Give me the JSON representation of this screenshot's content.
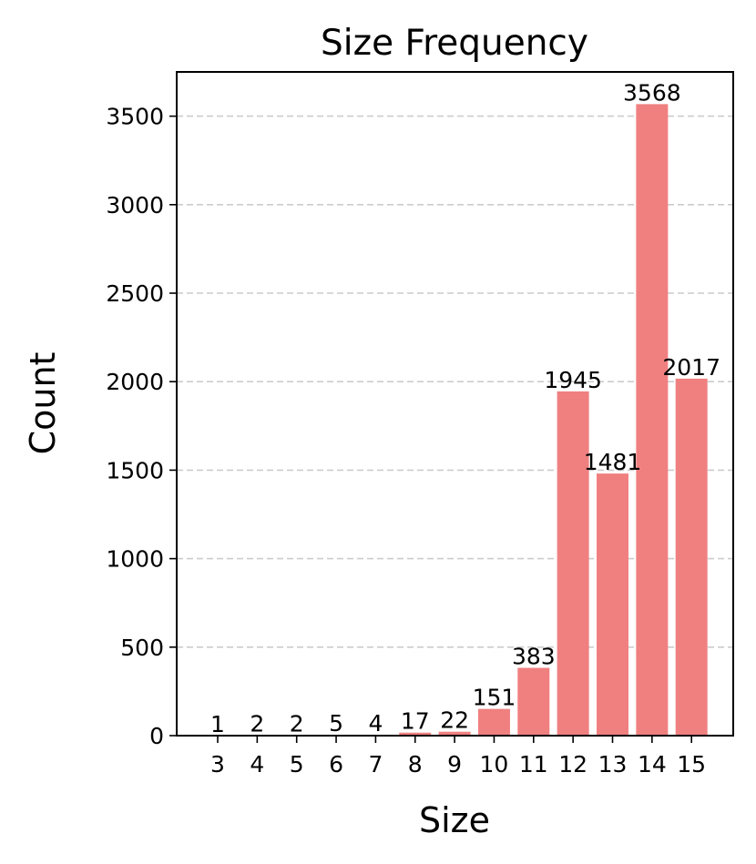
{
  "chart_data": {
    "type": "bar",
    "title": "Size Frequency",
    "xlabel": "Size",
    "ylabel": "Count",
    "categories": [
      "3",
      "4",
      "5",
      "6",
      "7",
      "8",
      "9",
      "10",
      "11",
      "12",
      "13",
      "14",
      "15"
    ],
    "values": [
      1,
      2,
      2,
      5,
      4,
      17,
      22,
      151,
      383,
      1945,
      1481,
      3568,
      2017
    ],
    "data_labels": [
      "1",
      "2",
      "2",
      "5",
      "4",
      "17",
      "22",
      "151",
      "383",
      "1945",
      "1481",
      "3568",
      "2017"
    ],
    "yticks": [
      0,
      500,
      1000,
      1500,
      2000,
      2500,
      3000,
      3500
    ],
    "ylim": [
      0,
      3750
    ],
    "grid": "y, dashed",
    "bar_color": "#f08080",
    "grid_color": "#cccccc"
  }
}
